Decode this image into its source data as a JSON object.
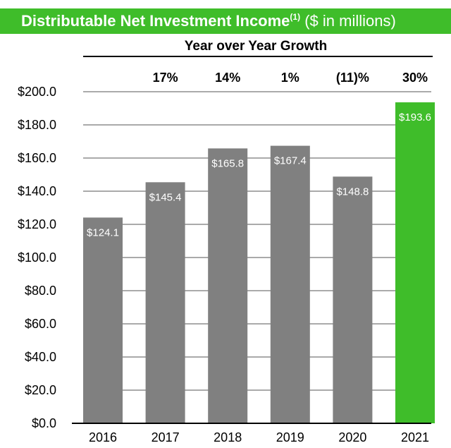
{
  "header": {
    "title": "Distributable Net Investment Income",
    "footnote_marker": "(1)",
    "units": "($ in millions)"
  },
  "growth": {
    "heading": "Year over Year Growth",
    "values": [
      "17%",
      "14%",
      "1%",
      "(11)%",
      "30%"
    ]
  },
  "colors": {
    "banner": "#3fbd2a",
    "bar": "#808080",
    "highlight_bar": "#3fbd2a",
    "grid": "#555555"
  },
  "chart_data": {
    "type": "bar",
    "title": "Distributable Net Investment Income",
    "ylabel": "",
    "xlabel": "",
    "categories": [
      "2016",
      "2017",
      "2018",
      "2019",
      "2020",
      "2021"
    ],
    "values": [
      124.1,
      145.4,
      165.8,
      167.4,
      148.8,
      193.6
    ],
    "data_labels": [
      "$124.1",
      "$145.4",
      "$165.8",
      "$167.4",
      "$148.8",
      "$193.6"
    ],
    "highlight_index": 5,
    "ylim": [
      0,
      200
    ],
    "yticks": [
      0,
      20,
      40,
      60,
      80,
      100,
      120,
      140,
      160,
      180,
      200
    ],
    "ytick_labels": [
      "$0.0",
      "$20.0",
      "$40.0",
      "$60.0",
      "$80.0",
      "$100.0",
      "$120.0",
      "$140.0",
      "$160.0",
      "$180.0",
      "$200.0"
    ],
    "grid": true,
    "legend": "none"
  }
}
